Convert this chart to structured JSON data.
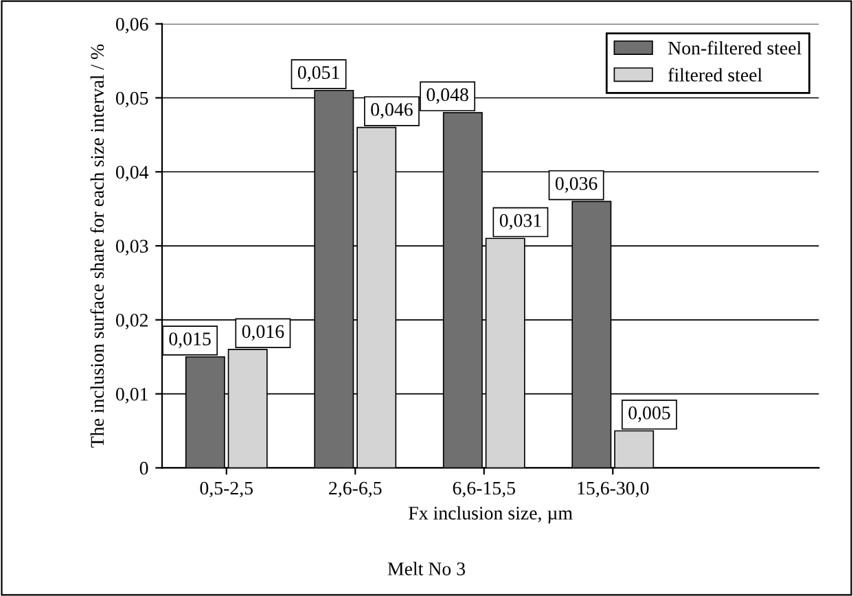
{
  "chart_data": {
    "type": "bar",
    "xlabel": "Fx inclusion size, µm",
    "ylabel": "The inclusion surface share for each size interval / %",
    "annotations": [
      "Melt No 3"
    ],
    "categories": [
      "0,5-2,5",
      "2,6-6,5",
      "6,6-15,5",
      "15,6-30,0"
    ],
    "series": [
      {
        "name": "Non-filtered steel",
        "color": "#707070",
        "values": [
          0.015,
          0.051,
          0.048,
          0.036
        ],
        "value_labels": [
          "0,015",
          "0,051",
          "0,048",
          "0,036"
        ]
      },
      {
        "name": "filtered steel",
        "color": "#d4d4d4",
        "values": [
          0.016,
          0.046,
          0.031,
          0.005
        ],
        "value_labels": [
          "0,016",
          "0,046",
          "0,031",
          "0,005"
        ]
      }
    ],
    "ylim": [
      0,
      0.06
    ],
    "yticks": [
      0,
      {
        "value": 0.01,
        "label": "0,01"
      },
      {
        "value": 0.02,
        "label": "0,02"
      },
      {
        "value": 0.03,
        "label": "0,03"
      },
      {
        "value": 0.04,
        "label": "0,04"
      },
      {
        "value": 0.05,
        "label": "0,05"
      },
      {
        "value": 0.06,
        "label": "0,06"
      }
    ],
    "grid": "y",
    "legend": "top right"
  }
}
